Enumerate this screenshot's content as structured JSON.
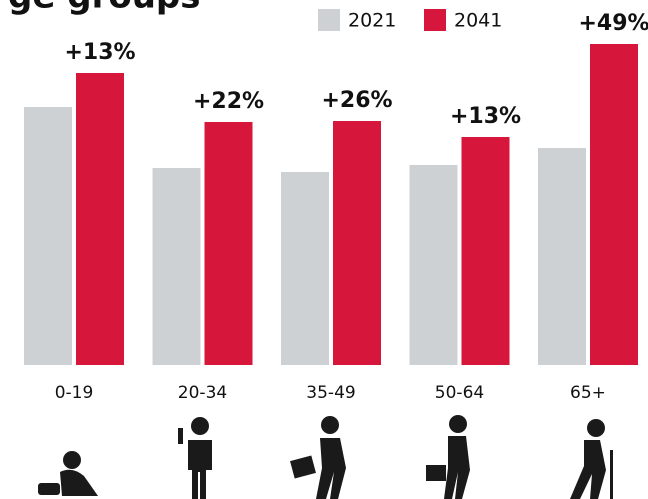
{
  "chart_data": {
    "type": "bar",
    "title": "ge groups",
    "categories": [
      "0-19",
      "20-34",
      "35-49",
      "50-64",
      "65+"
    ],
    "series": [
      {
        "name": "2021",
        "color": "#cdd1d4",
        "values": [
          258,
          197,
          193,
          200,
          217
        ]
      },
      {
        "name": "2041",
        "color": "#d7163b",
        "values": [
          292,
          243,
          244,
          228,
          321
        ]
      }
    ],
    "annotations": [
      "+13%",
      "+22%",
      "+26%",
      "+13%",
      "+49%"
    ],
    "ylim": [
      0,
      321
    ],
    "grid": false
  }
}
